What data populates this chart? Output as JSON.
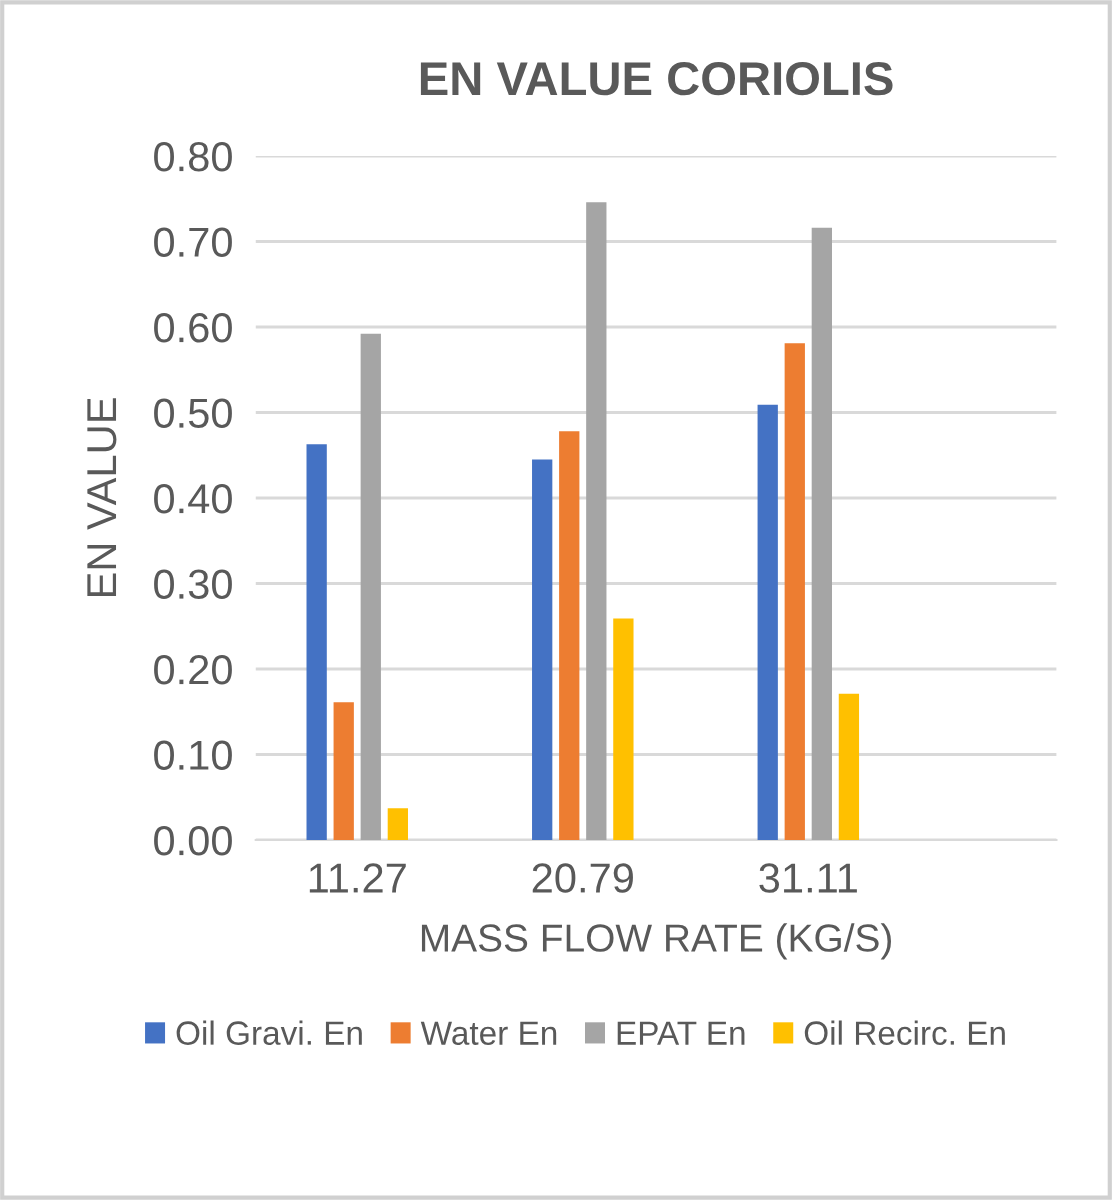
{
  "chart_data": {
    "type": "bar",
    "title": "EN VALUE CORIOLIS",
    "xlabel": "MASS FLOW RATE (KG/S)",
    "ylabel": "EN VALUE",
    "categories": [
      "11.27",
      "20.79",
      "31.11"
    ],
    "series": [
      {
        "name": "Oil Gravi. En",
        "color": "#4472c4",
        "values": [
          0.463,
          0.445,
          0.509
        ]
      },
      {
        "name": "Water En",
        "color": "#ed7d31",
        "values": [
          0.161,
          0.478,
          0.581
        ]
      },
      {
        "name": "EPAT En",
        "color": "#a5a5a5",
        "values": [
          0.592,
          0.746,
          0.716
        ]
      },
      {
        "name": "Oil Recirc. En",
        "color": "#ffc000",
        "values": [
          0.037,
          0.259,
          0.171
        ]
      }
    ],
    "ylim": [
      0,
      0.8
    ],
    "yticks": [
      {
        "value": 0,
        "label": "0.00"
      },
      {
        "value": 0.1,
        "label": "0.10"
      },
      {
        "value": 0.2,
        "label": "0.20"
      },
      {
        "value": 0.3,
        "label": "0.30"
      },
      {
        "value": 0.4,
        "label": "0.40"
      },
      {
        "value": 0.5,
        "label": "0.50"
      },
      {
        "value": 0.6,
        "label": "0.60"
      },
      {
        "value": 0.7,
        "label": "0.70"
      },
      {
        "value": 0.8,
        "label": "0.80"
      }
    ],
    "grid": "y",
    "legend": "bottom"
  }
}
